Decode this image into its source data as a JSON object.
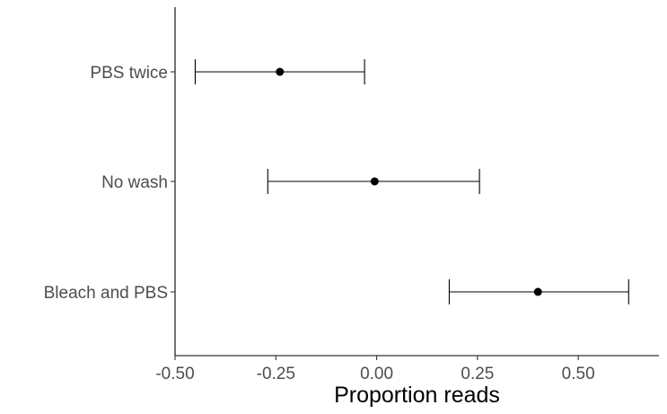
{
  "chart_data": {
    "type": "forest",
    "title": "",
    "xlabel": "Proportion reads",
    "ylabel": "",
    "xlim": [
      -0.5,
      0.7
    ],
    "x_ticks": [
      -0.5,
      -0.25,
      0.0,
      0.25,
      0.5
    ],
    "x_tick_labels": [
      "-0.50",
      "-0.25",
      "0.00",
      "0.25",
      "0.50"
    ],
    "categories": [
      "PBS twice",
      "No wash",
      "Bleach and PBS"
    ],
    "estimates": [
      -0.24,
      -0.005,
      0.4
    ],
    "lower": [
      -0.45,
      -0.27,
      0.18
    ],
    "upper": [
      -0.03,
      0.255,
      0.625
    ],
    "grid": false,
    "legend": "none",
    "colors": {
      "points": "#000000",
      "lines": "#000000",
      "tick_labels": "#4d4d4d",
      "axis_title": "#000000"
    }
  }
}
